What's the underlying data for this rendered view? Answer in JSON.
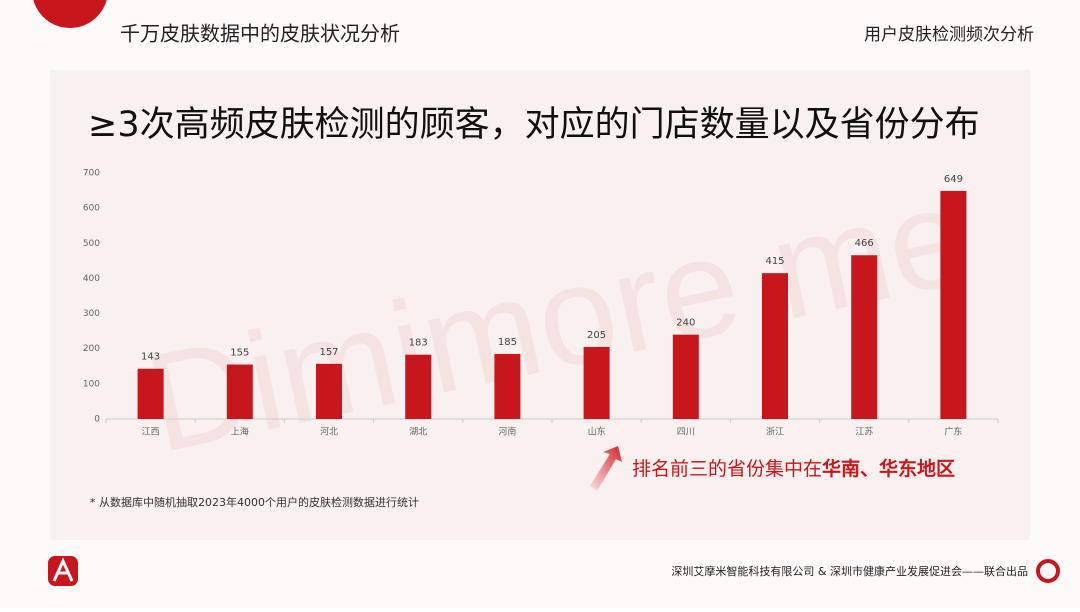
{
  "header": {
    "left": "千万皮肤数据中的皮肤状况分析",
    "right": "用户皮肤检测频次分析"
  },
  "watermark": "Dimimore me",
  "chart_data": {
    "type": "bar",
    "title": "≥3次高频皮肤检测的顾客，对应的门店数量以及省份分布",
    "categories": [
      "江西",
      "上海",
      "河北",
      "湖北",
      "河南",
      "山东",
      "四川",
      "浙江",
      "江苏",
      "广东"
    ],
    "values": [
      143,
      155,
      157,
      183,
      185,
      205,
      240,
      415,
      466,
      649
    ],
    "color": "#c8161d",
    "ylim": [
      0,
      700
    ],
    "yticks": [
      0,
      100,
      200,
      300,
      400,
      500,
      600,
      700
    ],
    "grid": false,
    "annotation": [
      "排名前三的省份集中在",
      "华南、华东地区"
    ]
  },
  "note": "* 从数据库中随机抽取2023年4000个用户的皮肤检测数据进行统计",
  "footer": "深圳艾摩米智能科技有限公司 & 深圳市健康产业发展促进会——联合出品"
}
